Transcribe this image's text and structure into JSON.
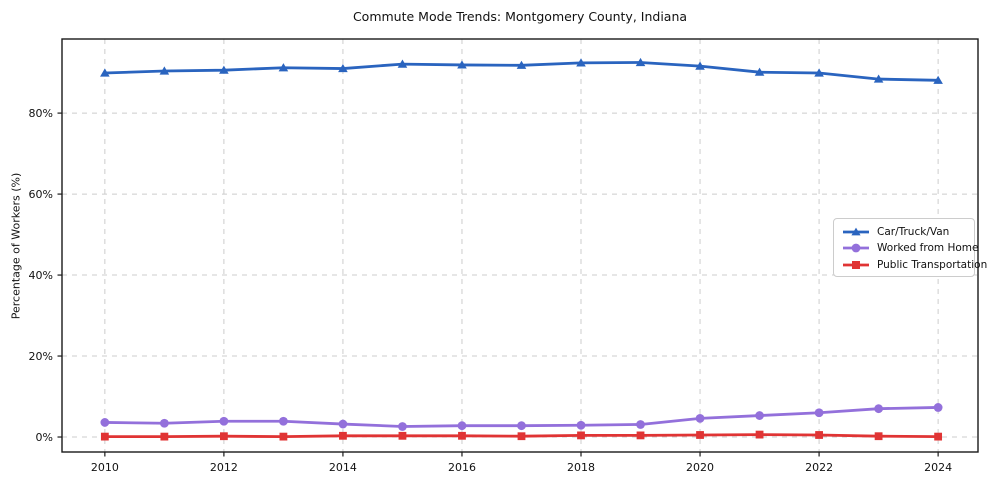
{
  "title": "Commute Mode Trends: Montgomery County, Indiana",
  "chart_data": {
    "type": "line",
    "title": "Commute Mode Trends: Montgomery County, Indiana",
    "xlabel": "",
    "ylabel": "Percentage of Workers (%)",
    "x": [
      2010,
      2011,
      2012,
      2013,
      2014,
      2015,
      2016,
      2017,
      2018,
      2019,
      2020,
      2021,
      2022,
      2023,
      2024
    ],
    "x_ticks": [
      2010,
      2012,
      2014,
      2016,
      2018,
      2020,
      2022,
      2024
    ],
    "x_tick_labels": [
      "2010",
      "2012",
      "2014",
      "2016",
      "2018",
      "2020",
      "2022",
      "2024"
    ],
    "y_ticks": [
      0,
      20,
      40,
      60,
      80
    ],
    "y_tick_labels": [
      "0%",
      "20%",
      "40%",
      "60%",
      "80%"
    ],
    "xlim": [
      2009.28,
      2024.67
    ],
    "ylim": [
      -3.7,
      98.3
    ],
    "grid": true,
    "grid_color": "#cccccc",
    "legend_position": "center right",
    "series": [
      {
        "name": "Car/Truck/Van",
        "color": "#2a64bf",
        "marker": "triangle",
        "values": [
          89.9,
          90.4,
          90.6,
          91.2,
          91.0,
          92.1,
          91.9,
          91.8,
          92.4,
          92.5,
          91.6,
          90.1,
          89.9,
          88.4,
          88.1
        ]
      },
      {
        "name": "Worked from Home",
        "color": "#9370db",
        "marker": "circle",
        "values": [
          3.6,
          3.4,
          3.9,
          3.9,
          3.2,
          2.6,
          2.8,
          2.8,
          2.9,
          3.1,
          4.6,
          5.3,
          6.0,
          7.0,
          7.3
        ]
      },
      {
        "name": "Public Transportation",
        "color": "#e03434",
        "marker": "square",
        "values": [
          0.1,
          0.1,
          0.2,
          0.1,
          0.3,
          0.3,
          0.3,
          0.2,
          0.4,
          0.4,
          0.5,
          0.6,
          0.5,
          0.2,
          0.1
        ]
      }
    ]
  }
}
